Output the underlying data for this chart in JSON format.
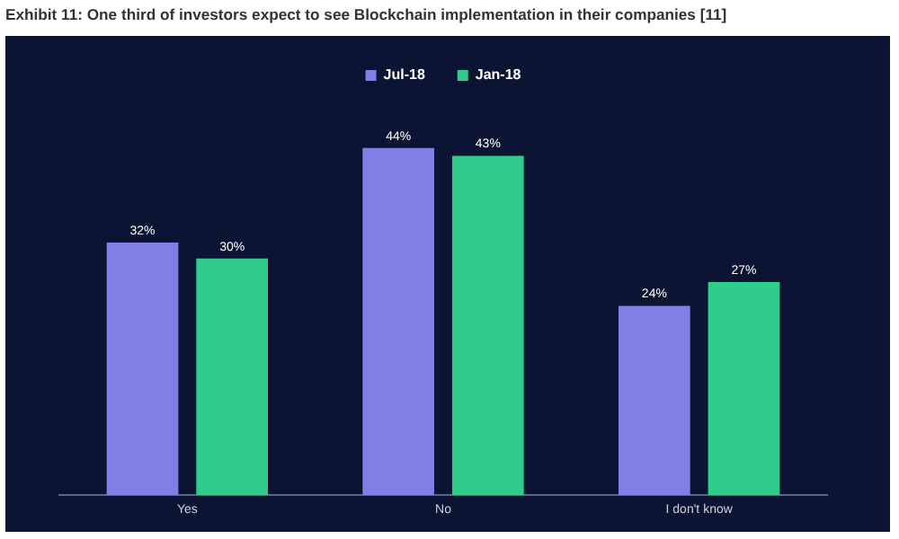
{
  "chart_data": {
    "type": "bar",
    "title": "Exhibit 11: One third of investors expect to see Blockchain implementation in their companies [11]",
    "categories": [
      "Yes",
      "No",
      "I don't know"
    ],
    "series": [
      {
        "name": "Jul-18",
        "color": "#7f7fe6",
        "values": [
          32,
          44,
          24
        ],
        "value_labels": [
          "32%",
          "44%",
          "24%"
        ]
      },
      {
        "name": "Jan-18",
        "color": "#2fcc8c",
        "values": [
          30,
          43,
          27
        ],
        "value_labels": [
          "30%",
          "43%",
          "27%"
        ]
      }
    ],
    "legend": "top",
    "grid": false
  }
}
